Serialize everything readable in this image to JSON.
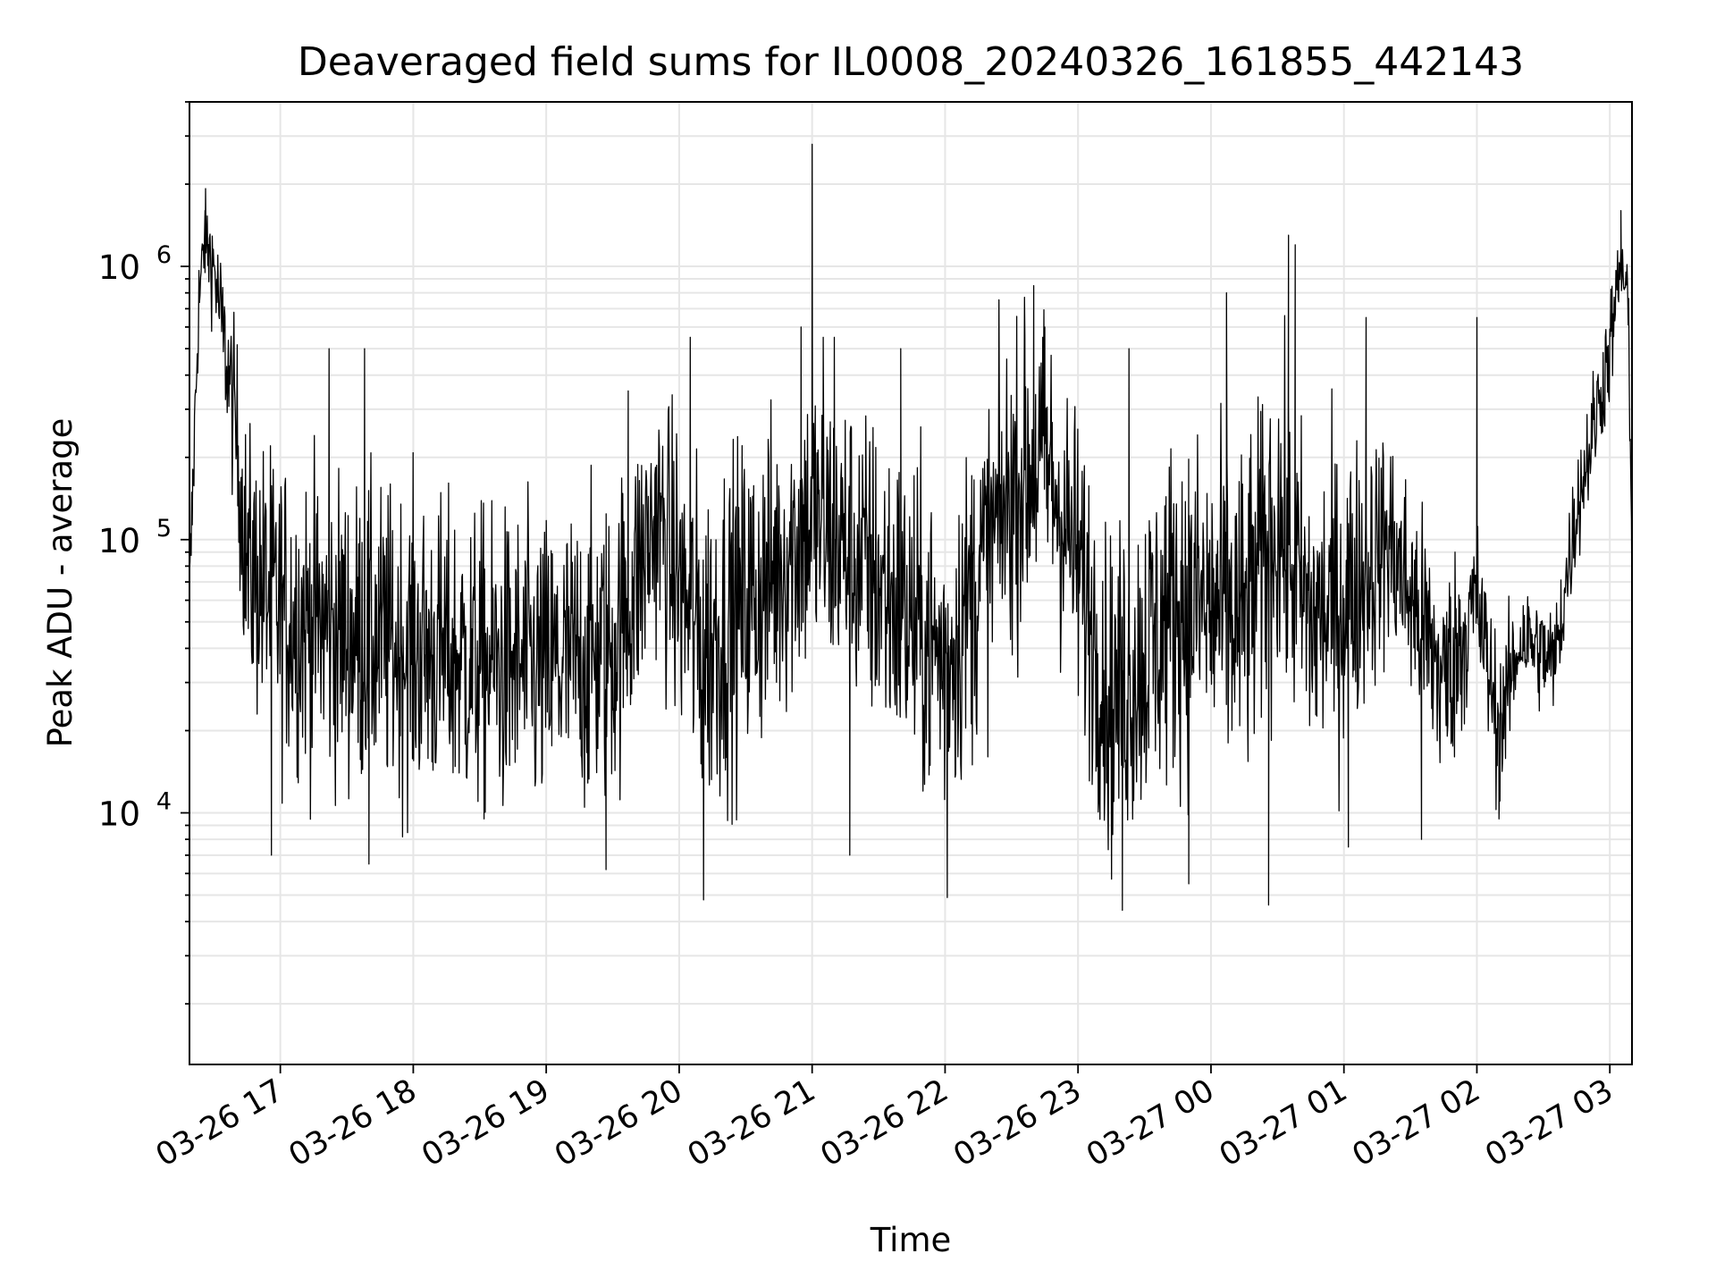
{
  "chart_data": {
    "type": "line",
    "title": "Deaveraged field sums for IL0008_20240326_161855_442143",
    "xlabel": "Time",
    "ylabel": "Peak ADU - average",
    "yscale": "log",
    "ylim": [
      1200,
      4000000
    ],
    "xlim": [
      "2024-03-26 16:19",
      "2024-03-27 03:10"
    ],
    "x_ticks": [
      "03-26 17",
      "03-26 18",
      "03-26 19",
      "03-26 20",
      "03-26 21",
      "03-26 22",
      "03-26 23",
      "03-27 00",
      "03-27 01",
      "03-27 02",
      "03-27 03"
    ],
    "y_ticks": [
      {
        "value": 10000,
        "base": "10",
        "exp": "4"
      },
      {
        "value": 100000,
        "base": "10",
        "exp": "5"
      },
      {
        "value": 1000000,
        "base": "10",
        "exp": "6"
      }
    ],
    "grid": true,
    "line_color": "#000000",
    "grid_color": "#e6e6e6",
    "series": [
      {
        "envelope": [
          {
            "t": "2024-03-26 16:19",
            "median": 60000,
            "spread": 0.15
          },
          {
            "t": "2024-03-26 16:23",
            "median": 700000,
            "spread": 0.15
          },
          {
            "t": "2024-03-26 16:26",
            "median": 1250000,
            "spread": 0.12
          },
          {
            "t": "2024-03-26 16:30",
            "median": 1000000,
            "spread": 0.15
          },
          {
            "t": "2024-03-26 16:35",
            "median": 500000,
            "spread": 0.18
          },
          {
            "t": "2024-03-26 16:40",
            "median": 250000,
            "spread": 0.25
          },
          {
            "t": "2024-03-26 16:45",
            "median": 80000,
            "spread": 0.35
          },
          {
            "t": "2024-03-26 17:00",
            "median": 55000,
            "spread": 0.4
          },
          {
            "t": "2024-03-26 17:30",
            "median": 45000,
            "spread": 0.4
          },
          {
            "t": "2024-03-26 18:00",
            "median": 40000,
            "spread": 0.4
          },
          {
            "t": "2024-03-26 18:30",
            "median": 35000,
            "spread": 0.4
          },
          {
            "t": "2024-03-26 19:00",
            "median": 33000,
            "spread": 0.4
          },
          {
            "t": "2024-03-26 19:30",
            "median": 40000,
            "spread": 0.4
          },
          {
            "t": "2024-03-26 19:50",
            "median": 120000,
            "spread": 0.35
          },
          {
            "t": "2024-03-26 20:10",
            "median": 40000,
            "spread": 0.45
          },
          {
            "t": "2024-03-26 20:40",
            "median": 70000,
            "spread": 0.42
          },
          {
            "t": "2024-03-26 21:00",
            "median": 120000,
            "spread": 0.4
          },
          {
            "t": "2024-03-26 21:30",
            "median": 70000,
            "spread": 0.42
          },
          {
            "t": "2024-03-26 22:00",
            "median": 35000,
            "spread": 0.42
          },
          {
            "t": "2024-03-26 22:30",
            "median": 150000,
            "spread": 0.4
          },
          {
            "t": "2024-03-26 22:45",
            "median": 200000,
            "spread": 0.38
          },
          {
            "t": "2024-03-26 23:00",
            "median": 80000,
            "spread": 0.4
          },
          {
            "t": "2024-03-26 23:15",
            "median": 25000,
            "spread": 0.42
          },
          {
            "t": "2024-03-26 23:45",
            "median": 60000,
            "spread": 0.45
          },
          {
            "t": "2024-03-27 00:15",
            "median": 50000,
            "spread": 0.45
          },
          {
            "t": "2024-03-27 00:30",
            "median": 120000,
            "spread": 0.42
          },
          {
            "t": "2024-03-27 00:45",
            "median": 50000,
            "spread": 0.42
          },
          {
            "t": "2024-03-27 01:00",
            "median": 60000,
            "spread": 0.4
          },
          {
            "t": "2024-03-27 01:20",
            "median": 100000,
            "spread": 0.3
          },
          {
            "t": "2024-03-27 01:45",
            "median": 30000,
            "spread": 0.3
          },
          {
            "t": "2024-03-27 02:00",
            "median": 60000,
            "spread": 0.22
          },
          {
            "t": "2024-03-27 02:10",
            "median": 20000,
            "spread": 0.2
          },
          {
            "t": "2024-03-27 02:20",
            "median": 45000,
            "spread": 0.15
          },
          {
            "t": "2024-03-27 02:35",
            "median": 35000,
            "spread": 0.15
          },
          {
            "t": "2024-03-27 02:45",
            "median": 130000,
            "spread": 0.15
          },
          {
            "t": "2024-03-27 03:00",
            "median": 500000,
            "spread": 0.15
          },
          {
            "t": "2024-03-27 03:05",
            "median": 1000000,
            "spread": 0.12
          },
          {
            "t": "2024-03-27 03:08",
            "median": 800000,
            "spread": 0.15
          },
          {
            "t": "2024-03-27 03:10",
            "median": 80000,
            "spread": 0.15
          }
        ],
        "peaks": [
          {
            "t": "2024-03-26 16:26",
            "value": 1600000
          },
          {
            "t": "2024-03-26 17:22",
            "value": 500000
          },
          {
            "t": "2024-03-26 17:38",
            "value": 500000
          },
          {
            "t": "2024-03-26 19:37",
            "value": 350000
          },
          {
            "t": "2024-03-26 20:05",
            "value": 550000
          },
          {
            "t": "2024-03-26 20:55",
            "value": 600000
          },
          {
            "t": "2024-03-26 21:00",
            "value": 2800000
          },
          {
            "t": "2024-03-26 21:05",
            "value": 550000
          },
          {
            "t": "2024-03-26 21:10",
            "value": 550000
          },
          {
            "t": "2024-03-26 21:40",
            "value": 500000
          },
          {
            "t": "2024-03-26 22:36",
            "value": 550000
          },
          {
            "t": "2024-03-26 22:40",
            "value": 850000
          },
          {
            "t": "2024-03-26 22:45",
            "value": 600000
          },
          {
            "t": "2024-03-26 23:23",
            "value": 500000
          },
          {
            "t": "2024-03-27 00:07",
            "value": 800000
          },
          {
            "t": "2024-03-27 00:35",
            "value": 1300000
          },
          {
            "t": "2024-03-27 00:38",
            "value": 1200000
          },
          {
            "t": "2024-03-27 01:10",
            "value": 650000
          },
          {
            "t": "2024-03-27 02:00",
            "value": 650000
          },
          {
            "t": "2024-03-27 03:05",
            "value": 1600000
          }
        ],
        "dips": [
          {
            "t": "2024-03-26 16:56",
            "value": 7000
          },
          {
            "t": "2024-03-26 17:40",
            "value": 6500
          },
          {
            "t": "2024-03-26 19:27",
            "value": 6200
          },
          {
            "t": "2024-03-26 20:11",
            "value": 4800
          },
          {
            "t": "2024-03-26 21:17",
            "value": 7000
          },
          {
            "t": "2024-03-26 22:01",
            "value": 4900
          },
          {
            "t": "2024-03-26 23:20",
            "value": 4400
          },
          {
            "t": "2024-03-26 23:50",
            "value": 5500
          },
          {
            "t": "2024-03-27 00:26",
            "value": 4600
          },
          {
            "t": "2024-03-27 01:02",
            "value": 7500
          },
          {
            "t": "2024-03-27 01:35",
            "value": 8000
          },
          {
            "t": "2024-03-27 02:10",
            "value": 9500
          }
        ]
      }
    ]
  }
}
